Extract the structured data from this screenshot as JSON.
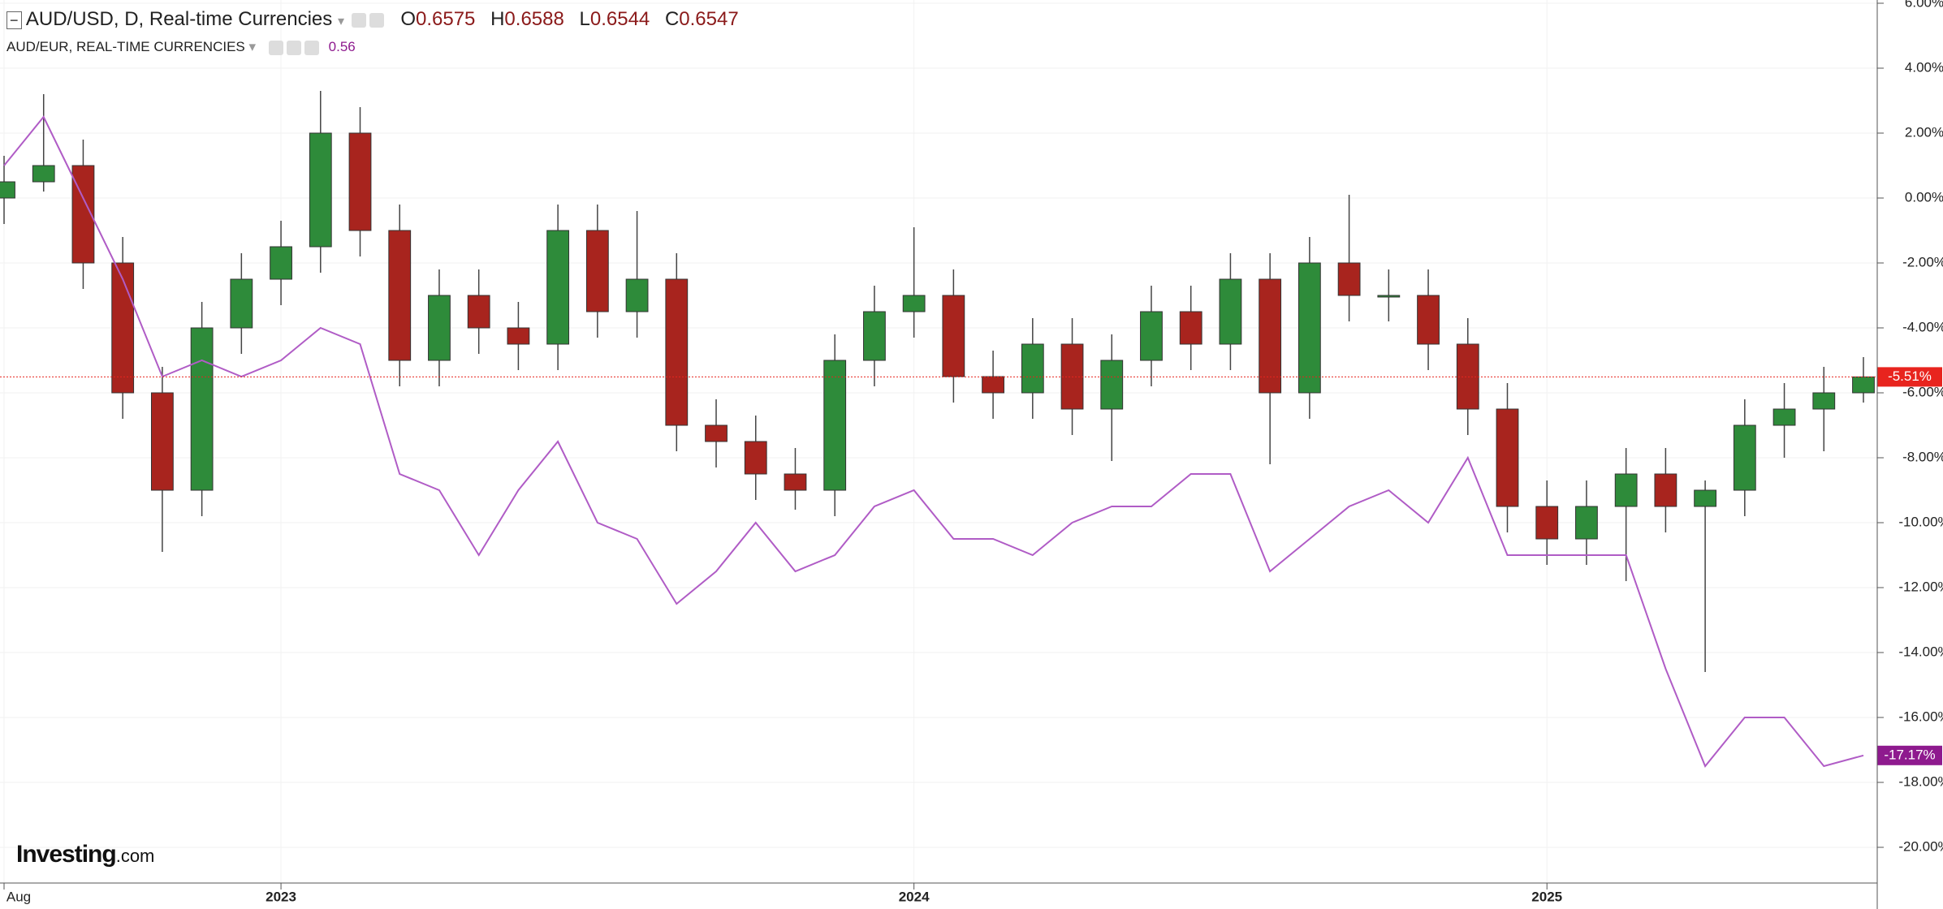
{
  "chart_data": {
    "type": "candlestick",
    "header": {
      "symbol": "AUD/USD, D, Real-time Currencies",
      "o_label": "O",
      "o": 0.6575,
      "h_label": "H",
      "h": 0.6588,
      "l_label": "L",
      "l": 0.6544,
      "c_label": "C",
      "c": 0.6547,
      "compare": "AUD/EUR, REAL-TIME CURRENCIES",
      "compare_value": 0.56
    },
    "logo": [
      "Investing",
      ".com"
    ],
    "categories": [
      "Aug",
      null,
      null,
      null,
      null,
      null,
      null,
      "2023",
      null,
      null,
      null,
      null,
      null,
      null,
      null,
      null,
      null,
      null,
      null,
      null,
      null,
      null,
      null,
      "2024",
      null,
      null,
      null,
      null,
      null,
      null,
      null,
      null,
      null,
      null,
      null,
      null,
      null,
      null,
      null,
      "2025",
      null,
      null,
      null,
      null,
      null,
      null,
      null,
      null
    ],
    "ylim": [
      -21.1,
      6.1
    ],
    "yticks": [
      {
        "value": 6,
        "label": "6.00%"
      },
      {
        "value": 4,
        "label": "4.00%"
      },
      {
        "value": 2,
        "label": "2.00%"
      },
      {
        "value": 0,
        "label": "0.00%"
      },
      {
        "value": -2,
        "label": "-2.00%"
      },
      {
        "value": -4,
        "label": "-4.00%"
      },
      {
        "value": -6,
        "label": "-6.00%"
      },
      {
        "value": -8,
        "label": "-8.00%"
      },
      {
        "value": -10,
        "label": "-10.00%"
      },
      {
        "value": -12,
        "label": "-12.00%"
      },
      {
        "value": -14,
        "label": "-14.00%"
      },
      {
        "value": -16,
        "label": "-16.00%"
      },
      {
        "value": -18,
        "label": "-18.00%"
      },
      {
        "value": -20,
        "label": "-20.00%"
      }
    ],
    "grid": true,
    "series": [
      {
        "name": "AUD/USD",
        "up_color": "#2e8b3a",
        "down_color": "#a8241e",
        "last_color": "#e8241e",
        "open": [
          0,
          0.5,
          1,
          -2,
          -6,
          -9,
          -4,
          -2.5,
          -1.5,
          2,
          -1,
          -5,
          -3,
          -4,
          -4.5,
          -1,
          -3.5,
          -2.5,
          -7,
          -7.5,
          -8.5,
          -9,
          -5,
          -3.5,
          -3,
          -5.5,
          -6,
          -4.5,
          -6.5,
          -5,
          -3.5,
          -4.5,
          -2.5,
          -6,
          -2,
          -3,
          -3,
          -4.5,
          -6.5,
          -9.5,
          -10.5,
          -9.5,
          -8.5,
          -9.5,
          -9,
          -7,
          -6.5,
          -6
        ],
        "high": [
          1.3,
          3.2,
          1.8,
          -1.2,
          -5.2,
          -3.2,
          -1.7,
          -0.7,
          3.3,
          2.8,
          -0.2,
          -2.2,
          -2.2,
          -3.2,
          -0.2,
          -0.2,
          -0.4,
          -1.7,
          -6.2,
          -6.7,
          -7.7,
          -4.2,
          -2.7,
          -0.9,
          -2.2,
          -4.7,
          -3.7,
          -3.7,
          -4.2,
          -2.7,
          -2.7,
          -1.7,
          -1.7,
          -1.2,
          0.1,
          -2.2,
          -2.2,
          -3.7,
          -5.7,
          -8.7,
          -8.7,
          -7.7,
          -7.7,
          -8.7,
          -6.2,
          -5.7,
          -5.2,
          -4.9
        ],
        "low": [
          -0.8,
          0.2,
          -2.8,
          -6.8,
          -10.9,
          -9.8,
          -4.8,
          -3.3,
          -2.3,
          -1.8,
          -5.8,
          -5.8,
          -4.8,
          -5.3,
          -5.3,
          -4.3,
          -4.3,
          -7.8,
          -8.3,
          -9.3,
          -9.6,
          -9.8,
          -5.8,
          -4.3,
          -6.3,
          -6.8,
          -6.8,
          -7.3,
          -8.1,
          -5.8,
          -5.3,
          -5.3,
          -8.2,
          -6.8,
          -3.8,
          -3.8,
          -5.3,
          -7.3,
          -10.3,
          -11.3,
          -11.3,
          -11.8,
          -10.3,
          -14.6,
          -9.8,
          -8.0,
          -7.8,
          -6.3
        ],
        "close": [
          0.5,
          1,
          -2,
          -6,
          -9,
          -4,
          -2.5,
          -1.5,
          2,
          -1,
          -5,
          -3,
          -4,
          -4.5,
          -1,
          -3.5,
          -2.5,
          -7,
          -7.5,
          -8.5,
          -9,
          -5,
          -3.5,
          -3,
          -5.5,
          -6,
          -4.5,
          -6.5,
          -5,
          -3.5,
          -4.5,
          -2.5,
          -6,
          -2,
          -3,
          -3,
          -4.5,
          -6.5,
          -9.5,
          -10.5,
          -9.5,
          -8.5,
          -9.5,
          -9,
          -7,
          -6.5,
          -6,
          -5.51
        ],
        "last": {
          "value": -5.51,
          "label": "-5.51%"
        }
      },
      {
        "name": "AUD/EUR",
        "color": "#b05cc6",
        "last_color": "#8e1a8e",
        "values": [
          1,
          2.5,
          0,
          -2.5,
          -5.5,
          -5,
          -5.5,
          -5,
          -4,
          -4.5,
          -8.5,
          -9,
          -11,
          -9,
          -7.5,
          -10,
          -10.5,
          -12.5,
          -11.5,
          -10,
          -11.5,
          -11,
          -9.5,
          -9,
          -10.5,
          -10.5,
          -11,
          -10,
          -9.5,
          -9.5,
          -8.5,
          -8.5,
          -11.5,
          -10.5,
          -9.5,
          -9,
          -10,
          -8,
          -11,
          -11,
          -11,
          -11,
          -14.5,
          -17.5,
          -16,
          -16,
          -17.5,
          -17.17
        ],
        "last": {
          "value": -17.17,
          "label": "-17.17%"
        }
      }
    ]
  }
}
